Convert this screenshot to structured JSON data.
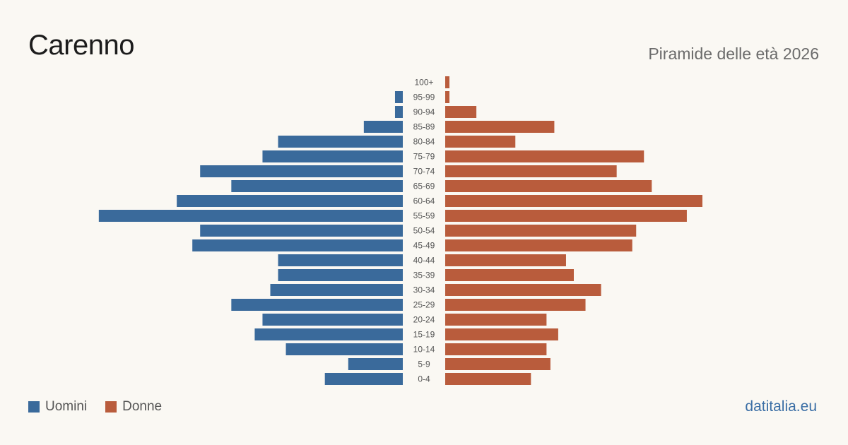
{
  "header": {
    "title": "Carenno",
    "subtitle": "Piramide delle età 2026"
  },
  "legend": {
    "male_label": "Uomini",
    "female_label": "Donne"
  },
  "brand": "datitalia.eu",
  "colors": {
    "male": "#3a6a9b",
    "female": "#b95c3c",
    "background": "#faf8f3"
  },
  "chart_data": {
    "type": "bar",
    "orientation": "horizontal-pyramid",
    "categories": [
      "100+",
      "95-99",
      "90-94",
      "85-89",
      "80-84",
      "75-79",
      "70-74",
      "65-69",
      "60-64",
      "55-59",
      "50-54",
      "45-49",
      "40-44",
      "35-39",
      "30-34",
      "25-29",
      "20-24",
      "15-19",
      "10-14",
      "5-9",
      "0-4"
    ],
    "series": [
      {
        "name": "Uomini",
        "values": [
          0,
          1,
          1,
          5,
          16,
          18,
          26,
          22,
          29,
          39,
          26,
          27,
          16,
          16,
          17,
          22,
          18,
          19,
          15,
          7,
          10
        ]
      },
      {
        "name": "Donne",
        "values": [
          0.5,
          0.5,
          4,
          14,
          9,
          25.5,
          22,
          26.5,
          33,
          31,
          24.5,
          24,
          15.5,
          16.5,
          20,
          18,
          13,
          14.5,
          13,
          13.5,
          11
        ]
      }
    ],
    "grid": false,
    "legend_position": "bottom-left"
  }
}
